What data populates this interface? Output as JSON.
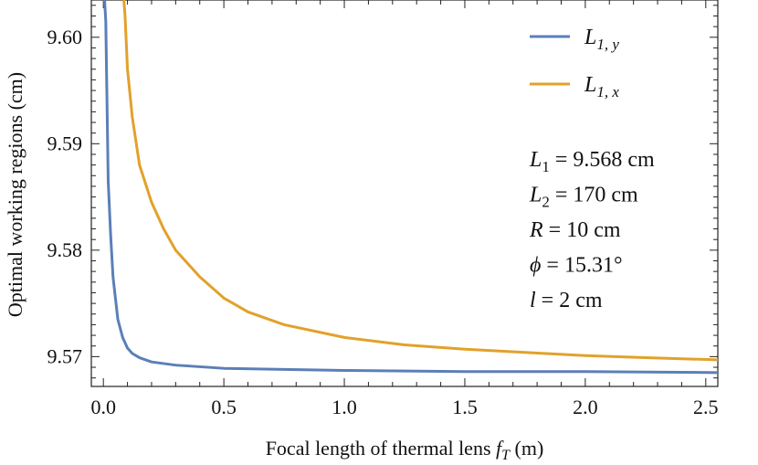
{
  "chart_data": {
    "type": "line",
    "xlabel": "Focal length of thermal lens",
    "xlabel_var": "f",
    "xlabel_var_sub": "T",
    "xlabel_unit": "(m)",
    "ylabel": "Optimal working regions (cm)",
    "xlim": [
      -0.05,
      2.55
    ],
    "ylim": [
      9.5672,
      9.6035
    ],
    "x_ticks": [
      0.0,
      0.5,
      1.0,
      1.5,
      2.0,
      2.5
    ],
    "x_tick_labels": [
      "0.0",
      "0.5",
      "1.0",
      "1.5",
      "2.0",
      "2.5"
    ],
    "y_ticks": [
      9.57,
      9.58,
      9.59,
      9.6
    ],
    "y_tick_labels": [
      "9.57",
      "9.58",
      "9.59",
      "9.60"
    ],
    "legend_position": "top-right",
    "grid": false,
    "series": [
      {
        "name_main": "L",
        "name_sub": "1, y",
        "color": "#5b7fb8",
        "x": [
          0.0,
          0.005,
          0.01,
          0.02,
          0.03,
          0.04,
          0.05,
          0.06,
          0.08,
          0.1,
          0.12,
          0.15,
          0.2,
          0.3,
          0.5,
          0.75,
          1.0,
          1.5,
          2.0,
          2.55
        ],
        "y": [
          9.6035,
          9.6035,
          9.6015,
          9.5865,
          9.5815,
          9.5775,
          9.5755,
          9.5735,
          9.5718,
          9.5708,
          9.5703,
          9.5699,
          9.5695,
          9.5692,
          9.5689,
          9.5688,
          9.5687,
          9.5686,
          9.5686,
          9.5685
        ]
      },
      {
        "name_main": "L",
        "name_sub": "1, x",
        "color": "#e2a12a",
        "x": [
          0.085,
          0.09,
          0.1,
          0.12,
          0.15,
          0.2,
          0.25,
          0.3,
          0.4,
          0.5,
          0.6,
          0.75,
          1.0,
          1.25,
          1.5,
          1.75,
          2.0,
          2.25,
          2.55
        ],
        "y": [
          9.6035,
          9.602,
          9.597,
          9.5925,
          9.588,
          9.5845,
          9.582,
          9.58,
          9.5775,
          9.5755,
          9.5742,
          9.573,
          9.5718,
          9.5711,
          9.5707,
          9.5704,
          9.5701,
          9.5699,
          9.5697
        ]
      }
    ],
    "annotations": [
      {
        "var": "L",
        "sub": "1",
        "value": " = 9.568 cm"
      },
      {
        "var": "L",
        "sub": "2",
        "value": " = 170 cm"
      },
      {
        "var": "R",
        "sub": "",
        "value": " = 10 cm"
      },
      {
        "var": "ϕ",
        "sub": "",
        "value": " = 15.31°"
      },
      {
        "var": "l",
        "sub": "",
        "value": " = 2 cm"
      }
    ]
  }
}
